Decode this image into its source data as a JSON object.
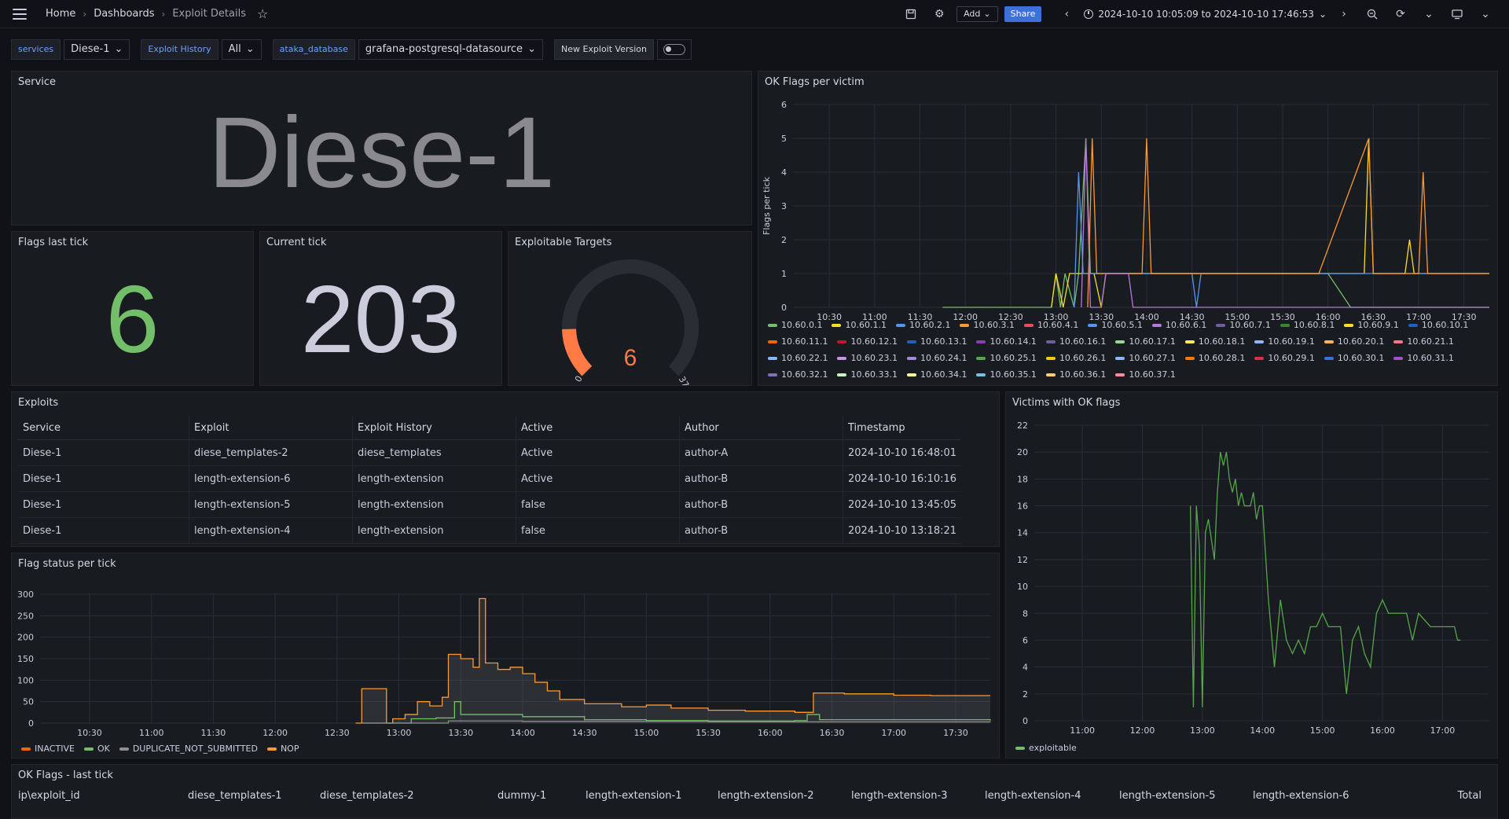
{
  "breadcrumb": {
    "home": "Home",
    "dashboards": "Dashboards",
    "current": "Exploit Details"
  },
  "toolbar": {
    "add_label": "Add",
    "share_label": "Share",
    "time_range": "2024-10-10 10:05:09 to 2024-10-10 17:46:53"
  },
  "variables": {
    "services_label": "services",
    "services_value": "Diese-1",
    "history_label": "Exploit History",
    "history_value": "All",
    "db_label": "ataka_database",
    "db_value": "grafana-postgresql-datasource",
    "new_version_label": "New Exploit Version"
  },
  "panels": {
    "service": {
      "title": "Service",
      "value": "Diese-1"
    },
    "flags_last_tick": {
      "title": "Flags last tick",
      "value": "6"
    },
    "current_tick": {
      "title": "Current tick",
      "value": "203"
    },
    "exploitable": {
      "title": "Exploitable Targets",
      "value": "6",
      "min": "0",
      "max": "37",
      "fraction": 0.162
    },
    "ok_flags_victim": {
      "title": "OK Flags per victim",
      "ylabel": "Flags per tick"
    },
    "exploits": {
      "title": "Exploits"
    },
    "flag_status": {
      "title": "Flag status per tick"
    },
    "victims": {
      "title": "Victims with OK flags"
    },
    "ok_last_tick": {
      "title": "OK Flags - last tick"
    }
  },
  "exploits_table": {
    "headers": [
      "Service",
      "Exploit",
      "Exploit History",
      "Active",
      "Author",
      "Timestamp"
    ],
    "rows": [
      [
        "Diese-1",
        "diese_templates-2",
        "diese_templates",
        "Active",
        "author-A",
        "2024-10-10 16:48:01"
      ],
      [
        "Diese-1",
        "length-extension-6",
        "length-extension",
        "Active",
        "author-B",
        "2024-10-10 16:10:16"
      ],
      [
        "Diese-1",
        "length-extension-5",
        "length-extension",
        "false",
        "author-B",
        "2024-10-10 13:45:05"
      ],
      [
        "Diese-1",
        "length-extension-4",
        "length-extension",
        "false",
        "author-B",
        "2024-10-10 13:18:21"
      ]
    ]
  },
  "ok_last_tick_headers": [
    "ip\\exploit_id",
    "diese_templates-1",
    "diese_templates-2",
    "dummy-1",
    "length-extension-1",
    "length-extension-2",
    "length-extension-3",
    "length-extension-4",
    "length-extension-5",
    "length-extension-6",
    "Total"
  ],
  "victim_legend": [
    {
      "name": "10.60.0.1",
      "color": "#73bf69"
    },
    {
      "name": "10.60.1.1",
      "color": "#fade2a"
    },
    {
      "name": "10.60.2.1",
      "color": "#5794f2"
    },
    {
      "name": "10.60.3.1",
      "color": "#ff9830"
    },
    {
      "name": "10.60.4.1",
      "color": "#f2495c"
    },
    {
      "name": "10.60.5.1",
      "color": "#5794f2"
    },
    {
      "name": "10.60.6.1",
      "color": "#b877d9"
    },
    {
      "name": "10.60.7.1",
      "color": "#705da0"
    },
    {
      "name": "10.60.8.1",
      "color": "#37872d"
    },
    {
      "name": "10.60.9.1",
      "color": "#fade2a"
    },
    {
      "name": "10.60.10.1",
      "color": "#1f60c4"
    },
    {
      "name": "10.60.11.1",
      "color": "#fa6400"
    },
    {
      "name": "10.60.12.1",
      "color": "#c4162a"
    },
    {
      "name": "10.60.13.1",
      "color": "#1f60c4"
    },
    {
      "name": "10.60.14.1",
      "color": "#8f3bb8"
    },
    {
      "name": "10.60.16.1",
      "color": "#705da0"
    },
    {
      "name": "10.60.17.1",
      "color": "#96d98d"
    },
    {
      "name": "10.60.18.1",
      "color": "#ffee52"
    },
    {
      "name": "10.60.19.1",
      "color": "#8ab8ff"
    },
    {
      "name": "10.60.20.1",
      "color": "#ffb357"
    },
    {
      "name": "10.60.21.1",
      "color": "#ff7383"
    },
    {
      "name": "10.60.22.1",
      "color": "#8ab8ff"
    },
    {
      "name": "10.60.23.1",
      "color": "#ca95e5"
    },
    {
      "name": "10.60.24.1",
      "color": "#a38cd9"
    },
    {
      "name": "10.60.25.1",
      "color": "#56a64b"
    },
    {
      "name": "10.60.26.1",
      "color": "#f2cc0c"
    },
    {
      "name": "10.60.27.1",
      "color": "#8ab8ff"
    },
    {
      "name": "10.60.28.1",
      "color": "#ff780a"
    },
    {
      "name": "10.60.29.1",
      "color": "#e02f44"
    },
    {
      "name": "10.60.30.1",
      "color": "#3274d9"
    },
    {
      "name": "10.60.31.1",
      "color": "#a352cc"
    },
    {
      "name": "10.60.32.1",
      "color": "#806eb7"
    },
    {
      "name": "10.60.33.1",
      "color": "#c8f2c2"
    },
    {
      "name": "10.60.34.1",
      "color": "#fff899"
    },
    {
      "name": "10.60.35.1",
      "color": "#73bfe8"
    },
    {
      "name": "10.60.36.1",
      "color": "#ffcb7d"
    },
    {
      "name": "10.60.37.1",
      "color": "#ff8c9a"
    }
  ],
  "status_legend": [
    {
      "name": "INACTIVE",
      "color": "#fa6400"
    },
    {
      "name": "OK",
      "color": "#73bf69"
    },
    {
      "name": "DUPLICATE_NOT_SUBMITTED",
      "color": "#8e8e8e"
    },
    {
      "name": "NOP",
      "color": "#ff9830"
    }
  ],
  "chart_data": [
    {
      "type": "line",
      "panel": "OK Flags per victim",
      "ylabel": "Flags per tick",
      "x_ticks": [
        "10:30",
        "11:00",
        "11:30",
        "12:00",
        "12:30",
        "13:00",
        "13:30",
        "14:00",
        "14:30",
        "15:00",
        "15:30",
        "16:00",
        "16:30",
        "17:00",
        "17:30"
      ],
      "y_ticks": [
        0,
        1,
        2,
        3,
        4,
        5,
        6
      ],
      "ylim": [
        0,
        6
      ],
      "xlim_min": [
        10.1,
        17.78
      ],
      "series": [
        {
          "name": "10.60.0.1",
          "points": [
            [
              11.75,
              0
            ],
            [
              12.95,
              0
            ],
            [
              13.0,
              1
            ],
            [
              13.05,
              0
            ],
            [
              13.1,
              1
            ],
            [
              13.2,
              0
            ],
            [
              13.25,
              1
            ],
            [
              13.33,
              5
            ],
            [
              13.38,
              1
            ],
            [
              16.0,
              1
            ],
            [
              16.25,
              0
            ],
            [
              17.78,
              0
            ]
          ]
        },
        {
          "name": "10.60.1.1",
          "points": [
            [
              12.95,
              0
            ],
            [
              13.0,
              1
            ],
            [
              13.08,
              0
            ],
            [
              13.15,
              1
            ],
            [
              13.42,
              1
            ],
            [
              13.5,
              0
            ],
            [
              13.55,
              1
            ],
            [
              14.8,
              1
            ],
            [
              15.0,
              1
            ],
            [
              16.4,
              1
            ],
            [
              16.45,
              5
            ],
            [
              16.5,
              1
            ],
            [
              16.85,
              1
            ],
            [
              16.9,
              2
            ],
            [
              16.95,
              1
            ],
            [
              17.78,
              1
            ]
          ]
        },
        {
          "name": "10.60.2.1",
          "points": [
            [
              13.2,
              0
            ],
            [
              13.25,
              4
            ],
            [
              13.3,
              1
            ],
            [
              14.5,
              1
            ],
            [
              14.55,
              0
            ],
            [
              14.6,
              1
            ],
            [
              17.78,
              1
            ]
          ]
        },
        {
          "name": "10.60.3.1",
          "points": [
            [
              13.35,
              0
            ],
            [
              13.4,
              5
            ],
            [
              13.45,
              1
            ],
            [
              13.95,
              1
            ],
            [
              14.0,
              5
            ],
            [
              14.05,
              1
            ],
            [
              15.9,
              1
            ],
            [
              16.45,
              5
            ],
            [
              16.5,
              1
            ],
            [
              17.0,
              1
            ],
            [
              17.05,
              4
            ],
            [
              17.1,
              1
            ],
            [
              17.78,
              1
            ]
          ]
        },
        {
          "name": "10.60.6.1",
          "points": [
            [
              13.28,
              0
            ],
            [
              13.33,
              5
            ],
            [
              13.38,
              0
            ],
            [
              13.5,
              0
            ],
            [
              13.55,
              1
            ],
            [
              13.8,
              1
            ],
            [
              13.85,
              0
            ],
            [
              17.78,
              0
            ]
          ]
        }
      ]
    },
    {
      "type": "line",
      "panel": "Flag status per tick",
      "x_ticks": [
        "10:30",
        "11:00",
        "11:30",
        "12:00",
        "12:30",
        "13:00",
        "13:30",
        "14:00",
        "14:30",
        "15:00",
        "15:30",
        "16:00",
        "16:30",
        "17:00",
        "17:30"
      ],
      "y_ticks": [
        0,
        50,
        100,
        150,
        200,
        250,
        300
      ],
      "ylim": [
        0,
        300
      ],
      "xlim_min": [
        10.1,
        17.78
      ],
      "series": [
        {
          "name": "NOP",
          "points": [
            [
              12.65,
              0
            ],
            [
              12.7,
              80
            ],
            [
              12.9,
              0
            ],
            [
              12.95,
              10
            ],
            [
              13.05,
              20
            ],
            [
              13.15,
              50
            ],
            [
              13.25,
              40
            ],
            [
              13.35,
              60
            ],
            [
              13.4,
              160
            ],
            [
              13.5,
              150
            ],
            [
              13.6,
              130
            ],
            [
              13.65,
              290
            ],
            [
              13.7,
              140
            ],
            [
              13.8,
              125
            ],
            [
              13.9,
              130
            ],
            [
              14.0,
              115
            ],
            [
              14.1,
              95
            ],
            [
              14.2,
              75
            ],
            [
              14.3,
              55
            ],
            [
              14.5,
              45
            ],
            [
              14.8,
              38
            ],
            [
              15.0,
              42
            ],
            [
              15.2,
              35
            ],
            [
              15.5,
              30
            ],
            [
              15.8,
              28
            ],
            [
              16.2,
              25
            ],
            [
              16.35,
              70
            ],
            [
              16.6,
              68
            ],
            [
              17.0,
              65
            ],
            [
              17.3,
              64
            ],
            [
              17.78,
              64
            ]
          ]
        },
        {
          "name": "OK",
          "points": [
            [
              12.7,
              0
            ],
            [
              13.1,
              10
            ],
            [
              13.3,
              12
            ],
            [
              13.45,
              50
            ],
            [
              13.5,
              20
            ],
            [
              14.0,
              15
            ],
            [
              14.5,
              8
            ],
            [
              15.0,
              6
            ],
            [
              15.5,
              5
            ],
            [
              16.2,
              6
            ],
            [
              16.3,
              20
            ],
            [
              16.4,
              8
            ],
            [
              17.78,
              6
            ]
          ]
        },
        {
          "name": "DUPLICATE_NOT_SUBMITTED",
          "points": [
            [
              12.7,
              0
            ],
            [
              13.4,
              5
            ],
            [
              14.0,
              4
            ],
            [
              15.5,
              3
            ],
            [
              17.78,
              2
            ]
          ]
        }
      ]
    },
    {
      "type": "line",
      "panel": "Victims with OK flags",
      "x_ticks": [
        "11:00",
        "12:00",
        "13:00",
        "14:00",
        "15:00",
        "16:00",
        "17:00"
      ],
      "y_ticks": [
        0,
        2,
        4,
        6,
        8,
        10,
        12,
        14,
        16,
        18,
        20,
        22
      ],
      "ylim": [
        0,
        22
      ],
      "xlim_min": [
        10.2,
        17.78
      ],
      "series": [
        {
          "name": "exploitable",
          "points": [
            [
              12.8,
              16
            ],
            [
              12.85,
              1
            ],
            [
              12.9,
              16
            ],
            [
              12.95,
              13
            ],
            [
              13.0,
              1
            ],
            [
              13.05,
              14
            ],
            [
              13.1,
              15
            ],
            [
              13.2,
              12
            ],
            [
              13.25,
              17
            ],
            [
              13.3,
              20
            ],
            [
              13.35,
              19
            ],
            [
              13.4,
              20
            ],
            [
              13.45,
              18
            ],
            [
              13.5,
              17
            ],
            [
              13.55,
              18
            ],
            [
              13.6,
              16
            ],
            [
              13.65,
              17
            ],
            [
              13.7,
              16
            ],
            [
              13.8,
              16
            ],
            [
              13.85,
              17
            ],
            [
              13.9,
              15
            ],
            [
              13.95,
              16
            ],
            [
              14.0,
              16
            ],
            [
              14.1,
              9
            ],
            [
              14.2,
              4
            ],
            [
              14.3,
              9
            ],
            [
              14.4,
              6
            ],
            [
              14.5,
              5
            ],
            [
              14.6,
              6
            ],
            [
              14.7,
              5
            ],
            [
              14.8,
              7
            ],
            [
              14.9,
              7
            ],
            [
              15.0,
              8
            ],
            [
              15.1,
              7
            ],
            [
              15.3,
              7
            ],
            [
              15.4,
              2
            ],
            [
              15.5,
              6
            ],
            [
              15.6,
              7
            ],
            [
              15.7,
              5
            ],
            [
              15.8,
              4
            ],
            [
              15.9,
              8
            ],
            [
              16.0,
              9
            ],
            [
              16.1,
              8
            ],
            [
              16.4,
              8
            ],
            [
              16.5,
              6
            ],
            [
              16.6,
              8
            ],
            [
              16.8,
              7
            ],
            [
              17.2,
              7
            ],
            [
              17.25,
              6
            ],
            [
              17.3,
              6
            ]
          ]
        }
      ]
    }
  ]
}
